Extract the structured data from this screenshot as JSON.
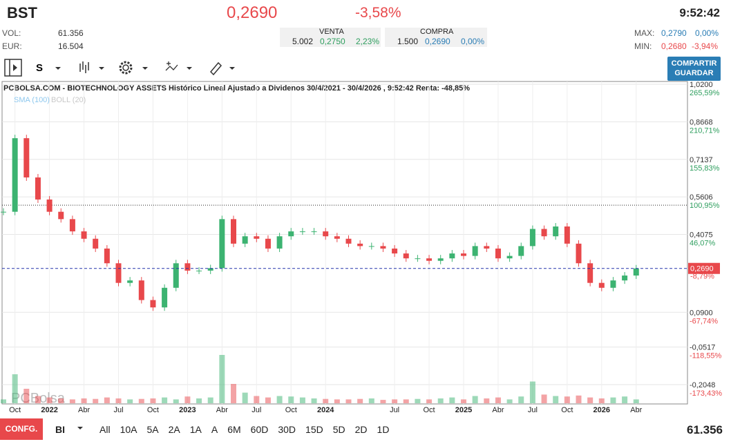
{
  "header": {
    "symbol": "BST",
    "price": "0,2690",
    "change": "-3,58%",
    "time": "9:52:42",
    "vol_label": "VOL:",
    "vol": "61.356",
    "eur_label": "EUR:",
    "eur": "16.504",
    "venta": {
      "title": "VENTA",
      "qty": "5.002",
      "price": "0,2750",
      "pct": "2,23%"
    },
    "compra": {
      "title": "COMPRA",
      "qty": "1.500",
      "price": "0,2690",
      "pct": "0,00%"
    },
    "max_label": "MAX:",
    "max": "0,2790",
    "max_pct": "0,00%",
    "min_label": "MIN:",
    "min": "0,2680",
    "min_pct": "-3,94%"
  },
  "toolbar": {
    "period": "S",
    "share": "COMPARTIR",
    "save": "GUARDAR"
  },
  "chart_data": {
    "type": "candlestick",
    "title": "PCBOLSA.COM - BIOTECHNOLOGY ASSETS Histórico Lineal Ajustado a Dividenos 30/4/2021 - 30/4/2026 , 9:52:42 Renta: -48,85%",
    "indicators": [
      {
        "name": "SMA (100)",
        "color": "#8ec8ee"
      },
      {
        "name": "BOLL (20)",
        "color": "#c8c8c8"
      }
    ],
    "watermark": "PCBolsa",
    "x_labels": [
      "Oct",
      "2022",
      "Abr",
      "Jul",
      "Oct",
      "2023",
      "Abr",
      "Jul",
      "Oct",
      "2024",
      null,
      "Jul",
      "Oct",
      "2025",
      "Abr",
      "Jul",
      "Oct",
      "2026",
      "Abr"
    ],
    "close": [
      0.5,
      0.8,
      0.64,
      0.55,
      0.5,
      0.47,
      0.42,
      0.39,
      0.35,
      0.29,
      0.21,
      0.22,
      0.14,
      0.11,
      0.19,
      0.29,
      0.26,
      0.26,
      0.27,
      0.47,
      0.37,
      0.4,
      0.39,
      0.35,
      0.4,
      0.42,
      0.42,
      0.42,
      0.4,
      0.39,
      0.37,
      0.36,
      0.36,
      0.35,
      0.33,
      0.31,
      0.31,
      0.3,
      0.31,
      0.33,
      0.32,
      0.36,
      0.35,
      0.31,
      0.32,
      0.36,
      0.43,
      0.4,
      0.44,
      0.37,
      0.29,
      0.21,
      0.19,
      0.22,
      0.24,
      0.269
    ],
    "volume": [
      8,
      60,
      30,
      15,
      12,
      10,
      8,
      10,
      9,
      12,
      10,
      8,
      9,
      10,
      12,
      8,
      14,
      10,
      12,
      100,
      40,
      22,
      15,
      12,
      15,
      14,
      12,
      10,
      9,
      8,
      8,
      9,
      10,
      7,
      8,
      8,
      9,
      8,
      10,
      12,
      8,
      15,
      10,
      12,
      8,
      14,
      45,
      18,
      15,
      14,
      16,
      12,
      10,
      12,
      14,
      8
    ],
    "vlim": [
      0,
      100
    ],
    "ylim": [
      -0.26,
      1.02
    ],
    "yticks": [
      {
        "value": 1.02,
        "label": "1,0200"
      },
      {
        "value": 0.8668,
        "label": "0,8668"
      },
      {
        "value": 0.7137,
        "label": "0,7137"
      },
      {
        "value": 0.5606,
        "label": "0,5606"
      },
      {
        "value": 0.4075,
        "label": "0,4075"
      },
      {
        "value": 0.09,
        "label": "0,0900"
      },
      {
        "value": -0.0517,
        "label": "-0,0517"
      },
      {
        "value": -0.2048,
        "label": "-0,2048"
      }
    ],
    "pct_labels": [
      "265,59%",
      "210,71%",
      "155,83%",
      "100,95%",
      "46,07%",
      "-67,74%",
      "-118,55%",
      "-173,43%"
    ],
    "last": {
      "value": 0.269,
      "label": "0,2690",
      "pct": "-8,79%"
    },
    "ref_line": 0.527,
    "up_color": "#3cb371",
    "down_color": "#e8484b"
  },
  "footer": {
    "config": "CONFG.",
    "mode": "BI",
    "ranges": [
      "All",
      "10A",
      "5A",
      "2A",
      "1A",
      "A",
      "6M",
      "60D",
      "30D",
      "15D",
      "5D",
      "2D",
      "1D"
    ],
    "volume": "61.356"
  }
}
